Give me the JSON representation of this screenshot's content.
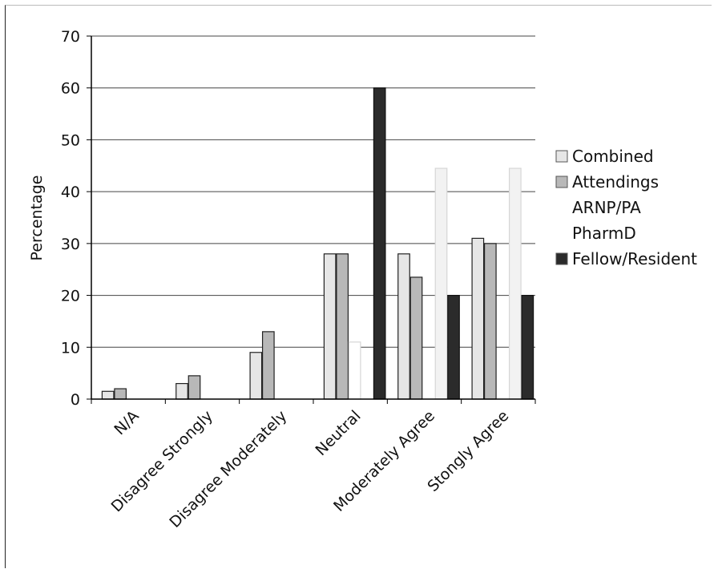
{
  "chart_data": {
    "type": "bar",
    "title": "",
    "xlabel": "",
    "ylabel": "Percentage",
    "ylim": [
      0,
      70
    ],
    "yticks": [
      0,
      10,
      20,
      30,
      40,
      50,
      60,
      70
    ],
    "grid": true,
    "legend_position": "right",
    "categories": [
      "N/A",
      "Disagree Strongly",
      "Disagree Moderately",
      "Neutral",
      "Moderately Agree",
      "Stongly Agree"
    ],
    "series": [
      {
        "name": "Combined",
        "color": "#e6e6e6",
        "values": [
          1.5,
          3,
          9,
          28,
          28,
          31
        ]
      },
      {
        "name": "Attendings",
        "color": "#b8b8b8",
        "values": [
          2,
          4.5,
          13,
          28,
          23.5,
          30
        ]
      },
      {
        "name": "ARNP/PA",
        "color": "#ffffff",
        "values": [
          0,
          0,
          0,
          11,
          0,
          0
        ]
      },
      {
        "name": "PharmD",
        "color": "#f2f2f2",
        "values": [
          0,
          0,
          0,
          0,
          44.5,
          44.5
        ]
      },
      {
        "name": "Fellow/Resident",
        "color": "#2b2b2b",
        "values": [
          0,
          0,
          0,
          60,
          20,
          20
        ]
      }
    ]
  }
}
